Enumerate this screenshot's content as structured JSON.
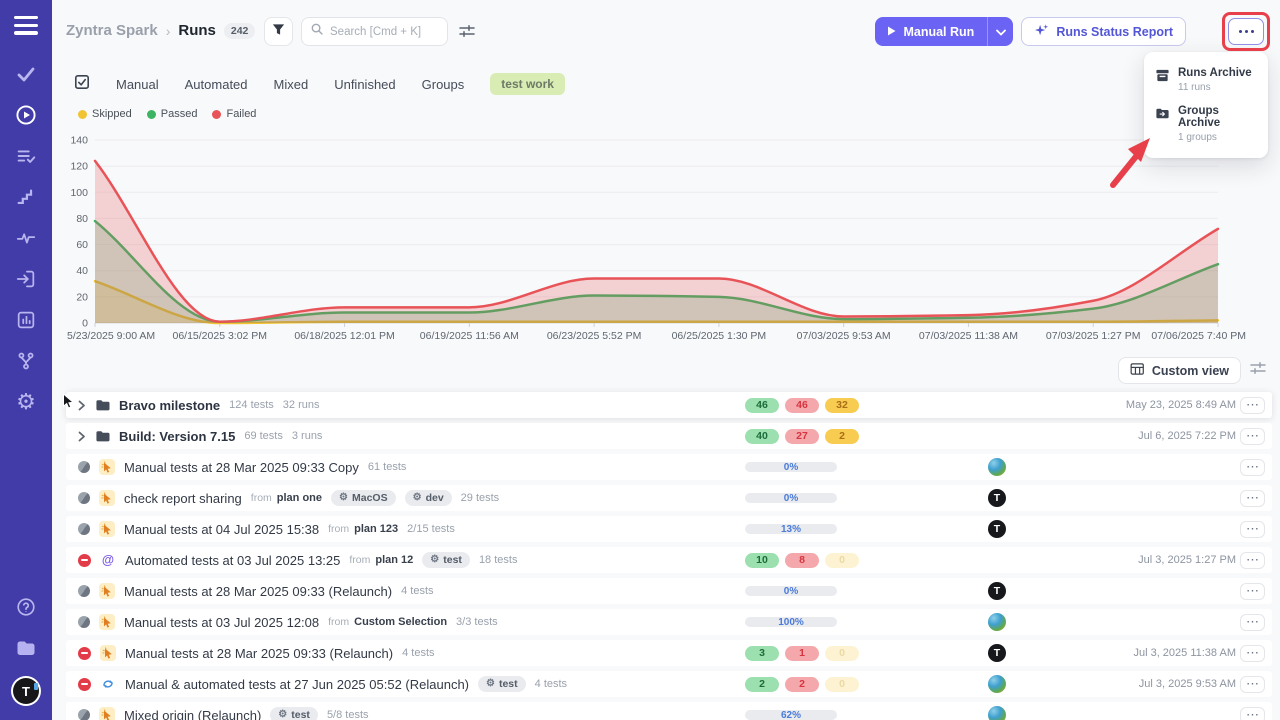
{
  "sidebar": {
    "icons": [
      "hamburger-menu",
      "tests",
      "runs",
      "test-plans",
      "milestones",
      "pulse",
      "import",
      "analytics",
      "branches",
      "settings",
      "help",
      "projects"
    ],
    "active": "runs",
    "profile_letter": "T"
  },
  "header": {
    "breadcrumb": {
      "project": "Zyntra Spark",
      "separator": "›",
      "page": "Runs",
      "count": "242"
    },
    "search": {
      "placeholder": "Search [Cmd + K]"
    },
    "manual_run_label": "Manual Run",
    "runs_status_report_label": "Runs Status Report",
    "more_menu": {
      "items": [
        {
          "label": "Runs Archive",
          "sublabel": "11 runs"
        },
        {
          "label": "Groups Archive",
          "sublabel": "1 groups"
        }
      ]
    }
  },
  "tabs": {
    "items": [
      "Manual",
      "Automated",
      "Mixed",
      "Unfinished",
      "Groups"
    ],
    "tag": "test work"
  },
  "chart_data": {
    "type": "area",
    "title": "",
    "x_labels": [
      "5/23/2025 9:00 AM",
      "06/15/2025 3:02 PM",
      "06/18/2025 12:01 PM",
      "06/19/2025 11:56 AM",
      "06/23/2025 5:52 PM",
      "06/25/2025 1:30 PM",
      "07/03/2025 9:53 AM",
      "07/03/2025 11:38 AM",
      "07/03/2025 1:27 PM",
      "07/06/2025 7:40 PM"
    ],
    "series": [
      {
        "name": "Skipped",
        "color": "#f0c433",
        "values": [
          32,
          0,
          1,
          1,
          1,
          1,
          1,
          1,
          1,
          2
        ]
      },
      {
        "name": "Passed",
        "color": "#3cb464",
        "values": [
          78,
          1,
          8,
          8,
          21,
          20,
          3,
          4,
          11,
          45
        ]
      },
      {
        "name": "Failed",
        "color": "#e85358",
        "values": [
          124,
          1,
          12,
          12,
          34,
          34,
          5,
          6,
          17,
          72
        ]
      }
    ],
    "ylim": [
      0,
      140
    ],
    "y_ticks": [
      0,
      20,
      40,
      60,
      80,
      100,
      120,
      140
    ],
    "grid": true,
    "legend_position": "top-left"
  },
  "toolbar": {
    "custom_view": "Custom view"
  },
  "table": {
    "from_label": "from",
    "avatar_letter": "T",
    "rows": [
      {
        "type": "group",
        "cursor": true,
        "name": "Bravo milestone",
        "tests": "124 tests",
        "runs": "32 runs",
        "result": {
          "passed": "46",
          "failed": "46",
          "skipped": "32",
          "skipped_faded": false
        },
        "date": "May 23, 2025 8:49 AM"
      },
      {
        "type": "group",
        "name": "Build: Version 7.15",
        "tests": "69 tests",
        "runs": "3 runs",
        "result": {
          "passed": "40",
          "failed": "27",
          "skipped": "2",
          "skipped_faded": false
        },
        "date": "Jul 6, 2025 7:22 PM"
      },
      {
        "type": "run",
        "kind": "manual",
        "status": "neutral",
        "name": "Manual tests at 28 Mar 2025 09:33 Copy",
        "tests": "61 tests",
        "progress": {
          "label": "0%",
          "pct": 0
        },
        "avatar": "photo"
      },
      {
        "type": "run",
        "kind": "manual",
        "status": "neutral",
        "name": "check report sharing",
        "from": "plan one",
        "tags": [
          "MacOS",
          "dev"
        ],
        "tests": "29 tests",
        "progress": {
          "label": "0%",
          "pct": 0
        },
        "avatar": "letter"
      },
      {
        "type": "run",
        "kind": "manual",
        "status": "neutral",
        "name": "Manual tests at 04 Jul 2025 15:38",
        "from": "plan 123",
        "tests": "2/15 tests",
        "progress": {
          "label": "13%",
          "pct": 13
        },
        "avatar": "letter"
      },
      {
        "type": "run",
        "kind": "automated",
        "status": "failed",
        "name": "Automated tests at 03 Jul 2025 13:25",
        "from": "plan 12",
        "tags": [
          "test"
        ],
        "tests": "18 tests",
        "result": {
          "passed": "10",
          "failed": "8",
          "skipped": "0",
          "skipped_faded": true
        },
        "date": "Jul 3, 2025 1:27 PM"
      },
      {
        "type": "run",
        "kind": "manual",
        "status": "neutral",
        "name": "Manual tests at 28 Mar 2025 09:33 (Relaunch)",
        "tests": "4 tests",
        "progress": {
          "label": "0%",
          "pct": 0
        },
        "avatar": "letter"
      },
      {
        "type": "run",
        "kind": "manual",
        "status": "neutral",
        "name": "Manual tests at 03 Jul 2025 12:08",
        "from": "Custom Selection",
        "tests": "3/3 tests",
        "progress": {
          "label": "100%",
          "pct": 100
        },
        "avatar": "photo"
      },
      {
        "type": "run",
        "kind": "manual",
        "status": "failed",
        "name": "Manual tests at 28 Mar 2025 09:33 (Relaunch)",
        "tests": "4 tests",
        "result": {
          "passed": "3",
          "failed": "1",
          "skipped": "0",
          "skipped_faded": true
        },
        "avatar": "letter",
        "date": "Jul 3, 2025 11:38 AM"
      },
      {
        "type": "run",
        "kind": "mixed",
        "status": "failed",
        "name": "Manual & automated tests at 27 Jun 2025 05:52 (Relaunch)",
        "tags": [
          "test"
        ],
        "tests": "4 tests",
        "result": {
          "passed": "2",
          "failed": "2",
          "skipped": "0",
          "skipped_faded": true
        },
        "avatar": "photo",
        "date": "Jul 3, 2025 9:53 AM"
      },
      {
        "type": "run",
        "kind": "manual",
        "status": "neutral",
        "name": "Mixed origin (Relaunch)",
        "tags": [
          "test"
        ],
        "tests": "5/8 tests",
        "progress": {
          "label": "62%",
          "pct": 62
        },
        "avatar": "photo"
      }
    ]
  }
}
